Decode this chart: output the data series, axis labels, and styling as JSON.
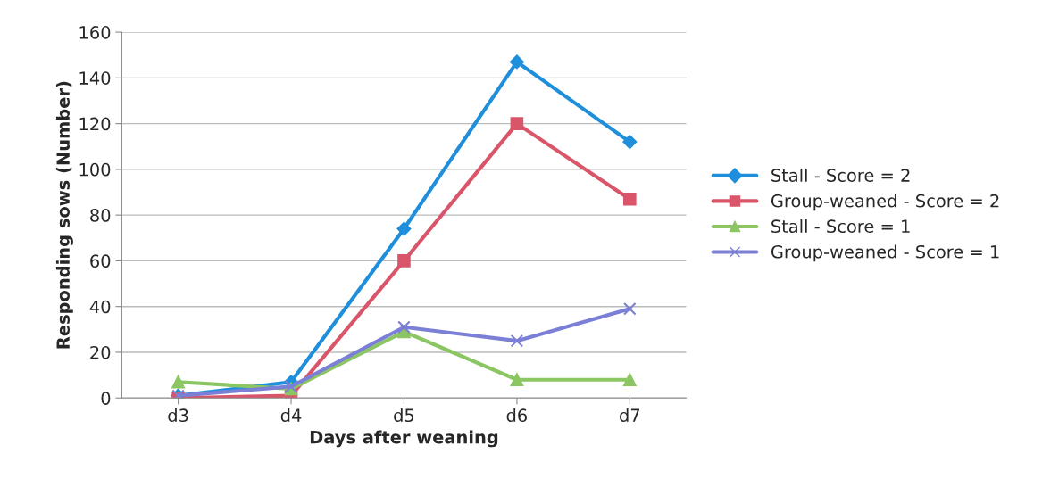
{
  "chart_data": {
    "type": "line",
    "xlabel": "Days after weaning",
    "ylabel": "Responding sows (Number)",
    "categories": [
      "d3",
      "d4",
      "d5",
      "d6",
      "d7"
    ],
    "series": [
      {
        "name": "Stall - Score = 2",
        "color": "#1f8fdc",
        "marker": "diamond",
        "values": [
          1,
          7,
          74,
          147,
          112
        ]
      },
      {
        "name": "Group-weaned - Score = 2",
        "color": "#d9556a",
        "marker": "square",
        "values": [
          0,
          1,
          60,
          120,
          87
        ]
      },
      {
        "name": "Stall - Score = 1",
        "color": "#8cc663",
        "marker": "triangle",
        "values": [
          7,
          4,
          29,
          8,
          8
        ]
      },
      {
        "name": "Group-weaned - Score = 1",
        "color": "#7b7fd6",
        "marker": "cross",
        "values": [
          1,
          5,
          31,
          25,
          39
        ]
      }
    ],
    "ylim": [
      0,
      160
    ],
    "yticks": [
      0,
      20,
      40,
      60,
      80,
      100,
      120,
      140,
      160
    ],
    "grid": "y",
    "legend": "right"
  }
}
